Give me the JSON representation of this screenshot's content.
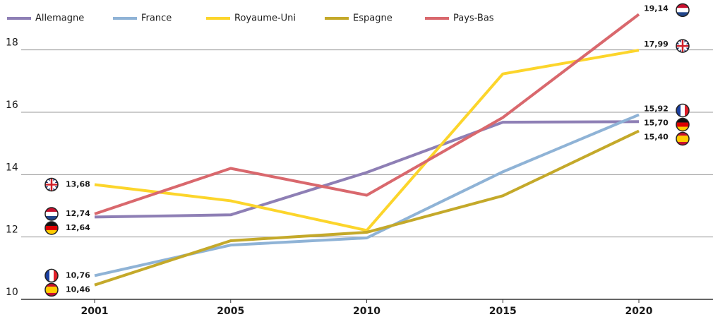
{
  "chart_data": {
    "type": "line",
    "categories": [
      "2001",
      "2005",
      "2010",
      "2015",
      "2020"
    ],
    "series": [
      {
        "name": "Allemagne",
        "color": "#8e7fb5",
        "values": [
          12.64,
          12.71,
          14.07,
          15.68,
          15.7
        ],
        "value_labels": [
          "12,64",
          null,
          null,
          null,
          "15,70"
        ]
      },
      {
        "name": "France",
        "color": "#8fb3d6",
        "values": [
          10.76,
          11.74,
          11.97,
          14.09,
          15.92
        ],
        "value_labels": [
          "10,76",
          null,
          null,
          null,
          "15,92"
        ]
      },
      {
        "name": "Royaume-Uni",
        "color": "#fcd52b",
        "values": [
          13.68,
          13.16,
          12.21,
          17.23,
          17.99
        ],
        "value_labels": [
          "13,68",
          null,
          null,
          null,
          "17,99"
        ]
      },
      {
        "name": "Espagne",
        "color": "#c4a92a",
        "values": [
          10.46,
          11.88,
          12.15,
          13.32,
          15.4
        ],
        "value_labels": [
          "10,46",
          null,
          null,
          null,
          "15,40"
        ]
      },
      {
        "name": "Pays-Bas",
        "color": "#d9686d",
        "values": [
          12.74,
          14.2,
          13.34,
          15.83,
          19.14
        ],
        "value_labels": [
          "12,74",
          null,
          null,
          null,
          "19,14"
        ]
      }
    ],
    "ylim": [
      10,
      19.6
    ],
    "yticks": [
      10,
      12,
      14,
      16,
      18
    ],
    "grid": true
  }
}
